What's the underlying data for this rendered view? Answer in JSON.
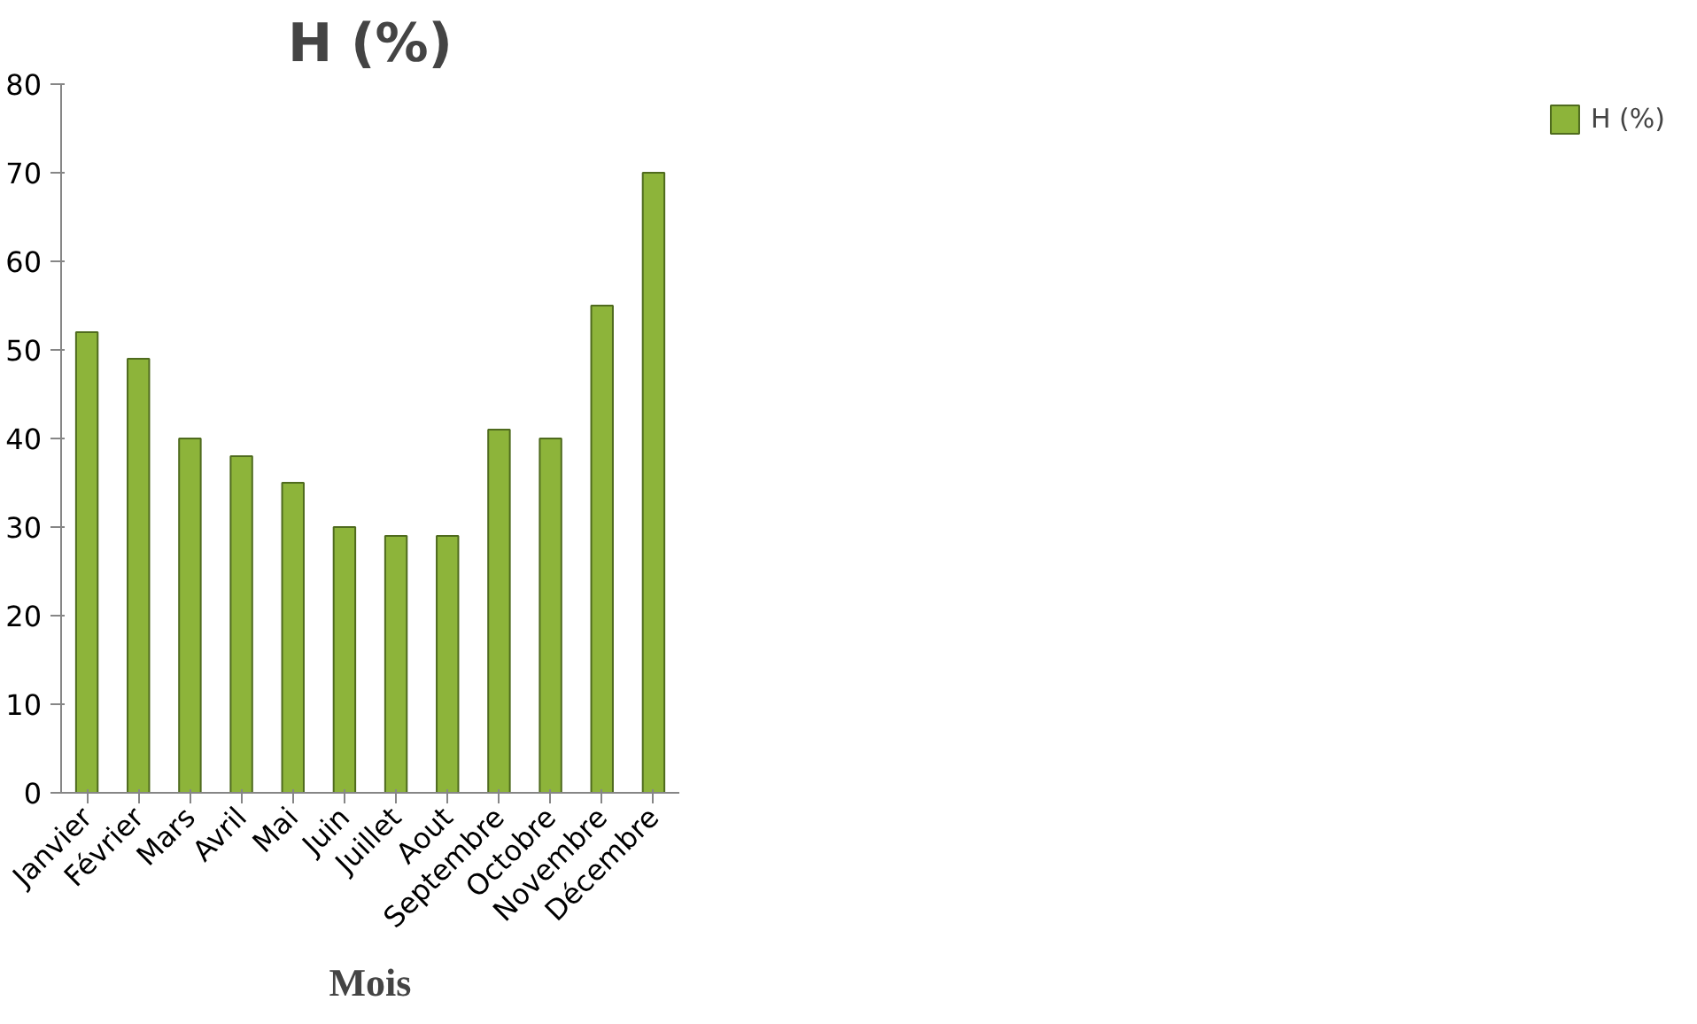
{
  "chart_data": {
    "type": "bar",
    "title": "H (%)",
    "xlabel": "Mois",
    "categories": [
      "Janvier",
      "Février",
      "Mars",
      "Avril",
      "Mai",
      "Juin",
      "Juillet",
      "Aout",
      "Septembre",
      "Octobre",
      "Novembre",
      "Décembre"
    ],
    "series": [
      {
        "name": "H (%)",
        "color": "#8db43a",
        "values": [
          52,
          49,
          40,
          38,
          35,
          30,
          29,
          29,
          41,
          40,
          55,
          70
        ]
      }
    ],
    "ylim": [
      0,
      80
    ],
    "yticks": [
      0,
      10,
      20,
      30,
      40,
      50,
      60,
      70,
      80
    ],
    "grid": false,
    "legend": "right"
  }
}
